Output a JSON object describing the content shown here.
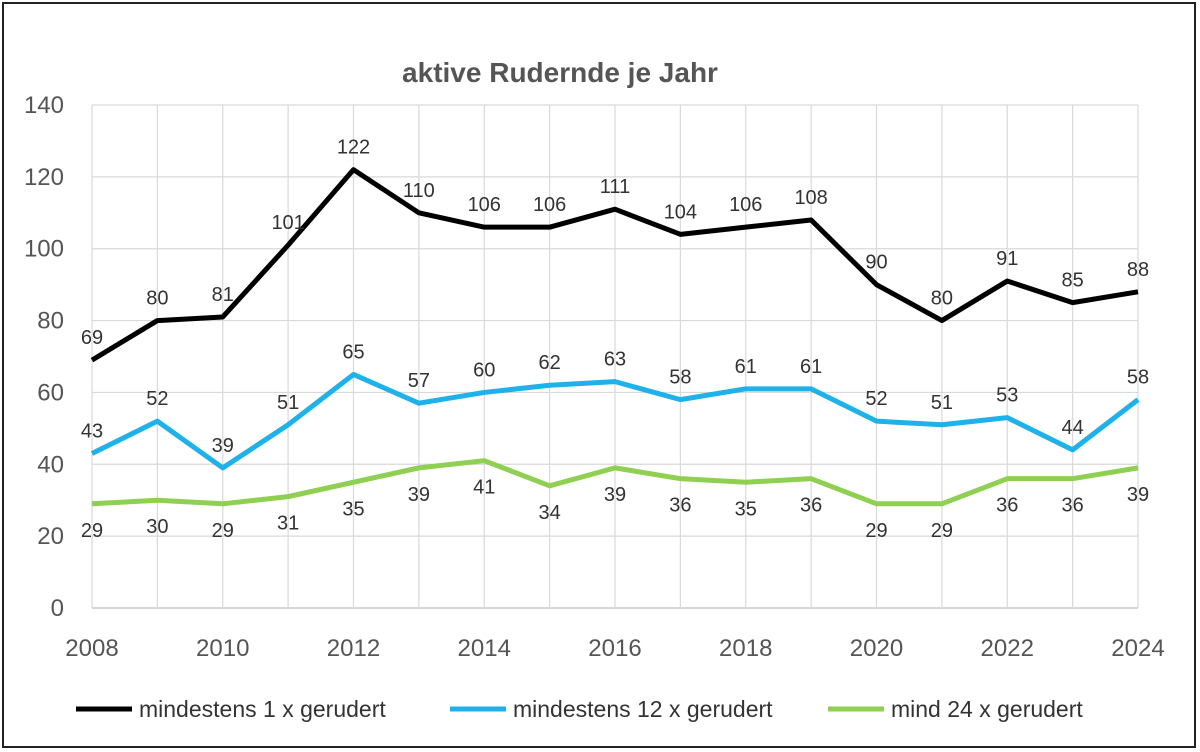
{
  "chart_data": {
    "type": "line",
    "title": "aktive Rudernde je Jahr",
    "xlabel": "",
    "ylabel": "",
    "x": [
      2008,
      2009,
      2010,
      2011,
      2012,
      2013,
      2014,
      2015,
      2016,
      2017,
      2018,
      2019,
      2020,
      2021,
      2022,
      2023,
      2024
    ],
    "x_ticks": [
      "2008",
      "2010",
      "2012",
      "2014",
      "2016",
      "2018",
      "2020",
      "2022",
      "2024"
    ],
    "ylim": [
      0,
      140
    ],
    "y_ticks": [
      0,
      20,
      40,
      60,
      80,
      100,
      120,
      140
    ],
    "grid": true,
    "legend": "bottom",
    "series": [
      {
        "name": "mindestens 1 x gerudert",
        "color": "#000000",
        "values": [
          69,
          80,
          81,
          101,
          122,
          110,
          106,
          106,
          111,
          104,
          106,
          108,
          90,
          80,
          91,
          85,
          88
        ],
        "label_position": "above"
      },
      {
        "name": "mindestens 12 x gerudert",
        "color": "#1eb1ea",
        "values": [
          43,
          52,
          39,
          51,
          65,
          57,
          60,
          62,
          63,
          58,
          61,
          61,
          52,
          51,
          53,
          44,
          58
        ],
        "label_position": "above"
      },
      {
        "name": "mind 24 x gerudert",
        "color": "#8fcf52",
        "values": [
          29,
          30,
          29,
          31,
          35,
          39,
          41,
          34,
          39,
          36,
          35,
          36,
          29,
          29,
          36,
          36,
          39
        ],
        "label_position": "below"
      }
    ]
  }
}
